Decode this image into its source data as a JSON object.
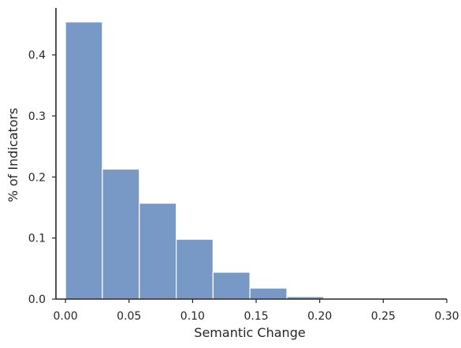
{
  "chart_data": {
    "type": "histogram",
    "title": "",
    "xlabel": "Semantic Change",
    "ylabel": "% of Indicators",
    "xlim": [
      -0.0075,
      0.3
    ],
    "ylim": [
      0,
      0.477
    ],
    "x_ticks": [
      0.0,
      0.05,
      0.1,
      0.15,
      0.2,
      0.25,
      0.3
    ],
    "x_tick_labels": [
      "0.00",
      "0.05",
      "0.10",
      "0.15",
      "0.20",
      "0.25",
      "0.30"
    ],
    "y_ticks": [
      0.0,
      0.1,
      0.2,
      0.3,
      0.4
    ],
    "y_tick_labels": [
      "0.0",
      "0.1",
      "0.2",
      "0.3",
      "0.4"
    ],
    "bin_edges": [
      0.0,
      0.029,
      0.0581,
      0.0871,
      0.1161,
      0.1451,
      0.1742,
      0.2032,
      0.2322,
      0.2612,
      0.2903
    ],
    "values": [
      0.454,
      0.213,
      0.157,
      0.098,
      0.044,
      0.018,
      0.004,
      0.0004,
      0.0002,
      0.0002
    ],
    "bar_color": "#7899c6",
    "bar_edge_color": "#ffffff",
    "spines": [
      "left",
      "bottom"
    ],
    "grid": false
  }
}
